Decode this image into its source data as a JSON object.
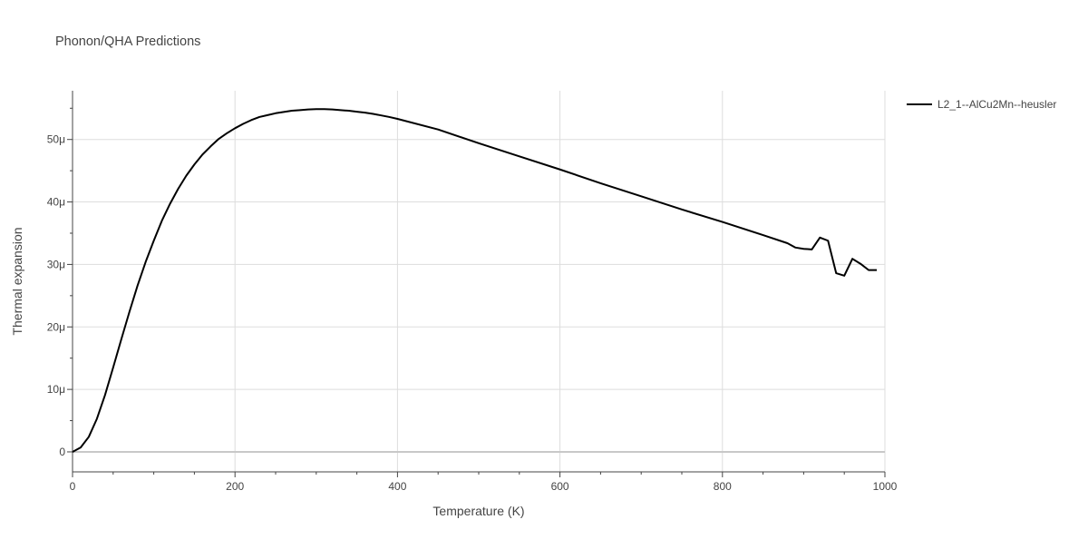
{
  "chart_data": {
    "type": "line",
    "title": "Phonon/QHA Predictions",
    "xlabel": "Temperature (K)",
    "ylabel": "Thermal expansion",
    "xlim": [
      0,
      1000
    ],
    "ylim": [
      -3.2e-06,
      5.78e-05
    ],
    "x_ticks": [
      0,
      200,
      400,
      600,
      800,
      1000
    ],
    "x_tick_labels": [
      "0",
      "200",
      "400",
      "600",
      "800",
      "1000"
    ],
    "y_ticks": [
      0,
      1e-05,
      2e-05,
      3e-05,
      4e-05,
      5e-05
    ],
    "y_tick_labels": [
      "0",
      "10μ",
      "20μ",
      "30μ",
      "40μ",
      "50μ"
    ],
    "grid": true,
    "legend_position": "top-right",
    "series": [
      {
        "name": "L2_1--AlCu2Mn--heusler",
        "color": "#000000",
        "x": [
          0,
          10,
          20,
          30,
          40,
          50,
          60,
          70,
          80,
          90,
          100,
          110,
          120,
          130,
          140,
          150,
          160,
          170,
          180,
          190,
          200,
          210,
          220,
          230,
          240,
          250,
          260,
          270,
          280,
          290,
          300,
          310,
          320,
          330,
          340,
          350,
          360,
          370,
          380,
          390,
          400,
          450,
          500,
          550,
          600,
          650,
          700,
          750,
          800,
          850,
          880,
          890,
          900,
          910,
          920,
          930,
          940,
          950,
          960,
          970,
          980,
          990
        ],
        "y": [
          0,
          7e-07,
          2.4e-06,
          5.3e-06,
          9.1e-06,
          1.35e-05,
          1.8e-05,
          2.24e-05,
          2.66e-05,
          3.04e-05,
          3.38e-05,
          3.7e-05,
          3.97e-05,
          4.21e-05,
          4.42e-05,
          4.6e-05,
          4.76e-05,
          4.89e-05,
          5.01e-05,
          5.1e-05,
          5.18e-05,
          5.25e-05,
          5.31e-05,
          5.36e-05,
          5.39e-05,
          5.42e-05,
          5.44e-05,
          5.46e-05,
          5.47e-05,
          5.48e-05,
          5.485e-05,
          5.485e-05,
          5.48e-05,
          5.47e-05,
          5.46e-05,
          5.445e-05,
          5.43e-05,
          5.41e-05,
          5.385e-05,
          5.36e-05,
          5.33e-05,
          5.16e-05,
          4.94e-05,
          4.73e-05,
          4.52e-05,
          4.3e-05,
          4.09e-05,
          3.88e-05,
          3.68e-05,
          3.47e-05,
          3.34e-05,
          3.27e-05,
          3.25e-05,
          3.24e-05,
          3.43e-05,
          3.38e-05,
          2.86e-05,
          2.82e-05,
          3.09e-05,
          3.01e-05,
          2.91e-05,
          2.91e-05
        ]
      }
    ]
  }
}
